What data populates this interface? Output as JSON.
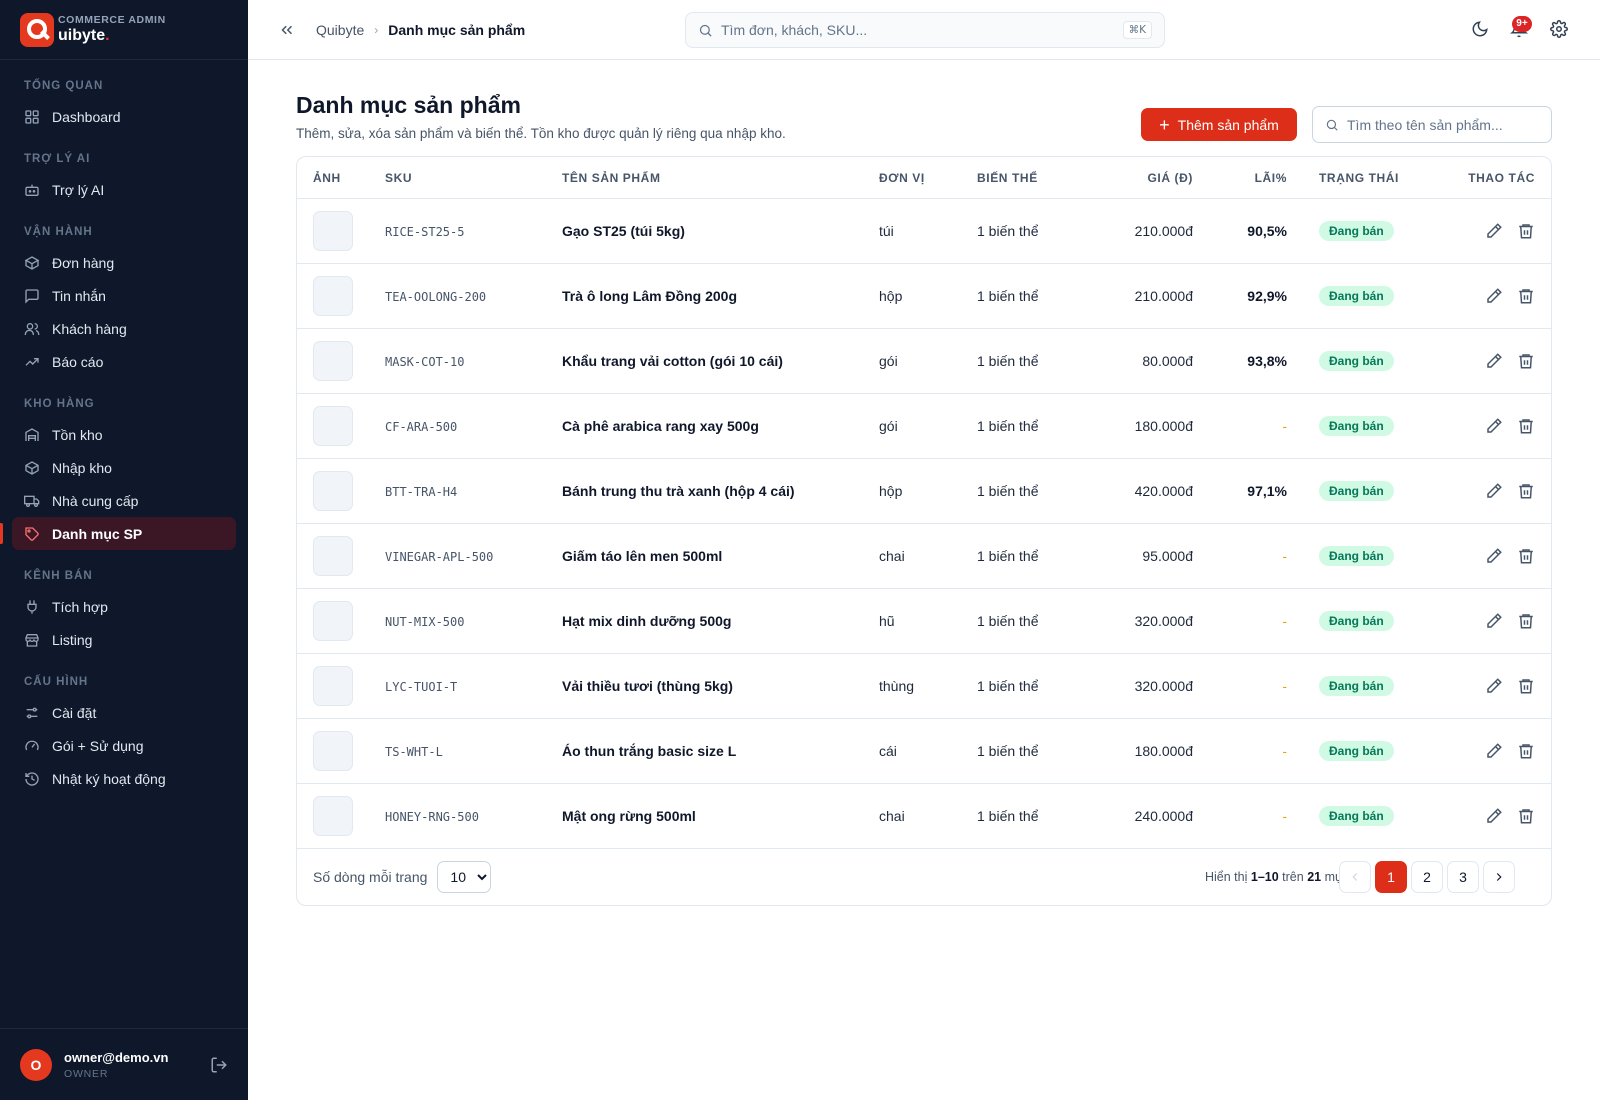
{
  "brand": {
    "subtitle": "COMMERCE ADMIN",
    "name": "uibyte",
    "dot": "."
  },
  "sidebar": {
    "sections": [
      {
        "title": "TỔNG QUAN",
        "items": [
          {
            "label": "Dashboard",
            "icon": "dashboard-icon"
          }
        ]
      },
      {
        "title": "TRỢ LÝ AI",
        "items": [
          {
            "label": "Trợ lý AI",
            "icon": "bot-icon"
          }
        ]
      },
      {
        "title": "VẬN HÀNH",
        "items": [
          {
            "label": "Đơn hàng",
            "icon": "package-icon"
          },
          {
            "label": "Tin nhắn",
            "icon": "message-icon"
          },
          {
            "label": "Khách hàng",
            "icon": "users-icon"
          },
          {
            "label": "Báo cáo",
            "icon": "trend-icon"
          }
        ]
      },
      {
        "title": "KHO HÀNG",
        "items": [
          {
            "label": "Tồn kho",
            "icon": "warehouse-icon"
          },
          {
            "label": "Nhập kho",
            "icon": "box-in-icon"
          },
          {
            "label": "Nhà cung cấp",
            "icon": "truck-icon"
          },
          {
            "label": "Danh mục SP",
            "icon": "tag-icon",
            "active": true
          }
        ]
      },
      {
        "title": "KÊNH BÁN",
        "items": [
          {
            "label": "Tích hợp",
            "icon": "plug-icon"
          },
          {
            "label": "Listing",
            "icon": "store-icon"
          }
        ]
      },
      {
        "title": "CẤU HÌNH",
        "items": [
          {
            "label": "Cài đặt",
            "icon": "sliders-icon"
          },
          {
            "label": "Gói + Sử dụng",
            "icon": "gauge-icon"
          },
          {
            "label": "Nhật ký hoạt động",
            "icon": "history-icon"
          }
        ]
      }
    ]
  },
  "user": {
    "initial": "O",
    "email": "owner@demo.vn",
    "role": "OWNER"
  },
  "header": {
    "breadcrumb_root": "Quibyte",
    "breadcrumb_sep": "›",
    "breadcrumb_current": "Danh mục sản phẩm",
    "search_placeholder": "Tìm đơn, khách, SKU...",
    "shortcut": "⌘K",
    "notif_badge": "9+"
  },
  "page": {
    "title": "Danh mục sản phẩm",
    "description": "Thêm, sửa, xóa sản phẩm và biến thể. Tồn kho được quản lý riêng qua nhập kho.",
    "add_button": "Thêm sản phẩm",
    "search_placeholder": "Tìm theo tên sản phẩm..."
  },
  "table": {
    "columns": {
      "image": "ẢNH",
      "sku": "SKU",
      "name": "TÊN SẢN PHẨM",
      "unit": "ĐƠN VỊ",
      "variants": "BIẾN THỂ",
      "price": "GIÁ (Đ)",
      "margin": "LÃI%",
      "status": "TRẠNG THÁI",
      "actions": "THAO TÁC"
    },
    "rows": [
      {
        "sku": "RICE-ST25-5",
        "name": "Gạo ST25 (túi 5kg)",
        "unit": "túi",
        "variants": "1 biến thể",
        "price": "210.000đ",
        "margin": "90,5%",
        "status": "Đang bán"
      },
      {
        "sku": "TEA-OOLONG-200",
        "name": "Trà ô long Lâm Đồng 200g",
        "unit": "hộp",
        "variants": "1 biến thể",
        "price": "210.000đ",
        "margin": "92,9%",
        "status": "Đang bán"
      },
      {
        "sku": "MASK-COT-10",
        "name": "Khẩu trang vải cotton (gói 10 cái)",
        "unit": "gói",
        "variants": "1 biến thể",
        "price": "80.000đ",
        "margin": "93,8%",
        "status": "Đang bán"
      },
      {
        "sku": "CF-ARA-500",
        "name": "Cà phê arabica rang xay 500g",
        "unit": "gói",
        "variants": "1 biến thể",
        "price": "180.000đ",
        "margin": "-",
        "status": "Đang bán"
      },
      {
        "sku": "BTT-TRA-H4",
        "name": "Bánh trung thu trà xanh (hộp 4 cái)",
        "unit": "hộp",
        "variants": "1 biến thể",
        "price": "420.000đ",
        "margin": "97,1%",
        "status": "Đang bán"
      },
      {
        "sku": "VINEGAR-APL-500",
        "name": "Giấm táo lên men 500ml",
        "unit": "chai",
        "variants": "1 biến thể",
        "price": "95.000đ",
        "margin": "-",
        "status": "Đang bán"
      },
      {
        "sku": "NUT-MIX-500",
        "name": "Hạt mix dinh dưỡng 500g",
        "unit": "hũ",
        "variants": "1 biến thể",
        "price": "320.000đ",
        "margin": "-",
        "status": "Đang bán"
      },
      {
        "sku": "LYC-TUOI-T",
        "name": "Vải thiều tươi (thùng 5kg)",
        "unit": "thùng",
        "variants": "1 biến thể",
        "price": "320.000đ",
        "margin": "-",
        "status": "Đang bán"
      },
      {
        "sku": "TS-WHT-L",
        "name": "Áo thun trắng basic size L",
        "unit": "cái",
        "variants": "1 biến thể",
        "price": "180.000đ",
        "margin": "-",
        "status": "Đang bán"
      },
      {
        "sku": "HONEY-RNG-500",
        "name": "Mật ong rừng 500ml",
        "unit": "chai",
        "variants": "1 biến thể",
        "price": "240.000đ",
        "margin": "-",
        "status": "Đang bán"
      }
    ]
  },
  "footer": {
    "rows_label": "Số dòng mỗi trang",
    "rows_value": "10",
    "showing_prefix": "Hiển thị",
    "showing_range": "1–10",
    "showing_mid": "trên",
    "showing_total": "21",
    "showing_suffix": "mục",
    "pages": [
      "1",
      "2",
      "3"
    ],
    "current_page": "1"
  },
  "colors": {
    "accent": "#dc2e18",
    "sidebar_bg": "#0f172a",
    "status_bg": "#d1fae5",
    "status_text": "#047857"
  }
}
